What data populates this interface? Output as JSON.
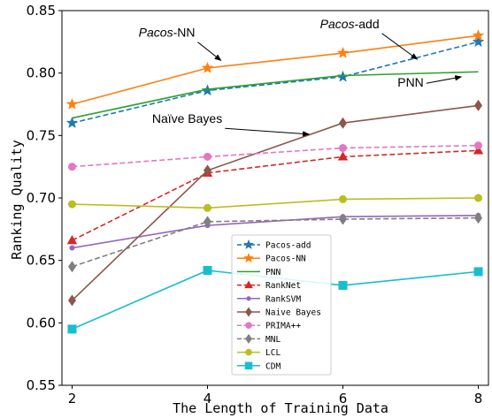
{
  "chart_data": {
    "type": "line",
    "xlabel": "The Length of Training Data",
    "ylabel": "Ranking Quality",
    "xlim": [
      1.85,
      8.15
    ],
    "ylim": [
      0.55,
      0.85
    ],
    "x_ticks": [
      "2",
      "4",
      "6",
      "8"
    ],
    "y_ticks": [
      "0.55",
      "0.60",
      "0.65",
      "0.70",
      "0.75",
      "0.80",
      "0.85"
    ],
    "x": [
      2,
      4,
      6,
      8
    ],
    "grid": false,
    "legend_position": "lower-center",
    "series": [
      {
        "name": "Pacos-add",
        "values": [
          0.76,
          0.786,
          0.797,
          0.825
        ],
        "color": "#1f77b4",
        "dash": "dashed",
        "marker": "star"
      },
      {
        "name": "Pacos-NN",
        "values": [
          0.775,
          0.804,
          0.816,
          0.83
        ],
        "color": "#ff7f0e",
        "dash": "solid",
        "marker": "star"
      },
      {
        "name": "PNN",
        "values": [
          0.764,
          0.787,
          0.798,
          0.801
        ],
        "color": "#2ca02c",
        "dash": "solid",
        "marker": "none"
      },
      {
        "name": "RankNet",
        "values": [
          0.666,
          0.72,
          0.733,
          0.738
        ],
        "color": "#d62728",
        "dash": "dashed",
        "marker": "triangle"
      },
      {
        "name": "RankSVM",
        "values": [
          0.66,
          0.678,
          0.685,
          0.686
        ],
        "color": "#9467bd",
        "dash": "solid",
        "marker": "dot"
      },
      {
        "name": "Naive Bayes",
        "values": [
          0.618,
          0.722,
          0.76,
          0.774
        ],
        "color": "#8c564b",
        "dash": "solid",
        "marker": "diamond"
      },
      {
        "name": "PRIMA++",
        "values": [
          0.725,
          0.733,
          0.74,
          0.742
        ],
        "color": "#e377c2",
        "dash": "dashed",
        "marker": "circle"
      },
      {
        "name": "MNL",
        "values": [
          0.645,
          0.681,
          0.683,
          0.684
        ],
        "color": "#7f7f7f",
        "dash": "dashed",
        "marker": "diamond"
      },
      {
        "name": "LCL",
        "values": [
          0.695,
          0.692,
          0.699,
          0.7
        ],
        "color": "#bcbd22",
        "dash": "solid",
        "marker": "circle"
      },
      {
        "name": "CDM",
        "values": [
          0.595,
          0.642,
          0.63,
          0.641
        ],
        "color": "#17becf",
        "dash": "solid",
        "marker": "square"
      }
    ],
    "annotations": [
      {
        "text_italic": "Pacos",
        "text_rest": "-NN",
        "series": "Pacos-NN",
        "x": 3.4,
        "y": 0.829,
        "arrow_to": [
          4.2,
          0.81
        ]
      },
      {
        "text_italic": "Pacos",
        "text_rest": "-add",
        "series": "Pacos-add",
        "x": 6.1,
        "y": 0.836,
        "arrow_to": [
          7.1,
          0.811
        ]
      },
      {
        "text_italic": "",
        "text_rest": "PNN",
        "series": "PNN",
        "x": 7.0,
        "y": 0.789,
        "arrow_to": [
          7.75,
          0.797
        ]
      },
      {
        "text_italic": "",
        "text_rest": "Naïve Bayes",
        "series": "Naive Bayes",
        "x": 3.7,
        "y": 0.76,
        "arrow_to": [
          5.5,
          0.751
        ]
      }
    ]
  }
}
